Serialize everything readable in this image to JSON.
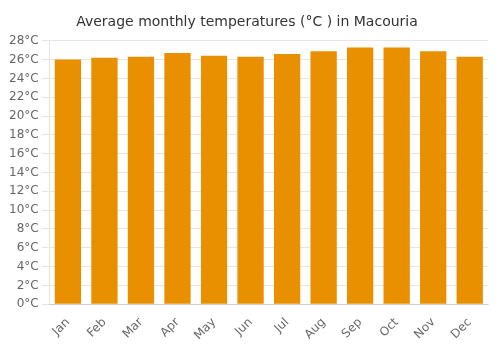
{
  "chart_data": {
    "type": "bar",
    "title": "Average monthly temperatures (°C ) in Macouria",
    "categories": [
      "Jan",
      "Feb",
      "Mar",
      "Apr",
      "May",
      "Jun",
      "Jul",
      "Aug",
      "Sep",
      "Oct",
      "Nov",
      "Dec"
    ],
    "values": [
      26.0,
      26.2,
      26.3,
      26.7,
      26.4,
      26.3,
      26.6,
      26.9,
      27.3,
      27.3,
      26.9,
      26.3
    ],
    "color": "#E89000",
    "ylim": [
      0,
      28
    ],
    "yticks": [
      {
        "value": 0,
        "label": "0°C"
      },
      {
        "value": 2,
        "label": "2°C"
      },
      {
        "value": 4,
        "label": "4°C"
      },
      {
        "value": 6,
        "label": "6°C"
      },
      {
        "value": 8,
        "label": "8°C"
      },
      {
        "value": 10,
        "label": "10°C"
      },
      {
        "value": 12,
        "label": "12°C"
      },
      {
        "value": 14,
        "label": "14°C"
      },
      {
        "value": 16,
        "label": "16°C"
      },
      {
        "value": 18,
        "label": "18°C"
      },
      {
        "value": 20,
        "label": "20°C"
      },
      {
        "value": 22,
        "label": "22°C"
      },
      {
        "value": 24,
        "label": "24°C"
      },
      {
        "value": 26,
        "label": "26°C"
      },
      {
        "value": 28,
        "label": "28°C"
      }
    ],
    "grid": true
  }
}
